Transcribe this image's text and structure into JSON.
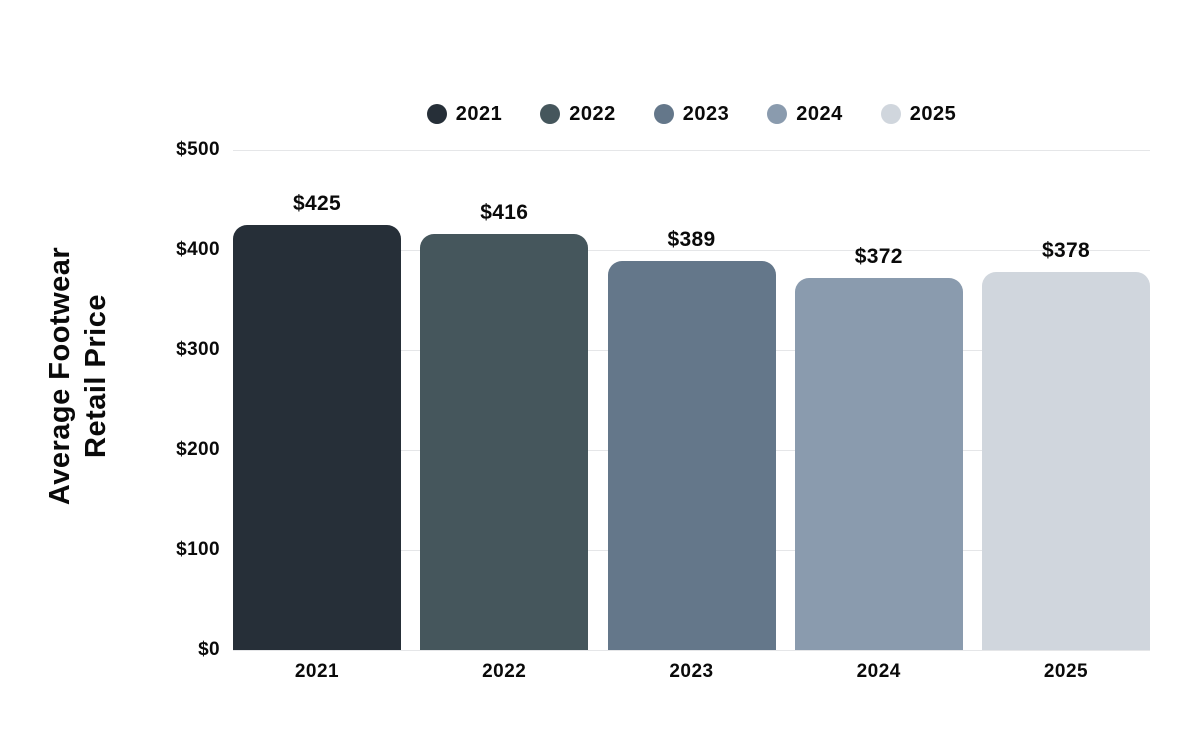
{
  "chart_data": {
    "type": "bar",
    "title": "",
    "ylabel_lines": [
      "Average Footwear",
      "Retail Price"
    ],
    "xlabel": "",
    "categories": [
      "2021",
      "2022",
      "2023",
      "2024",
      "2025"
    ],
    "values": [
      425,
      416,
      389,
      372,
      378
    ],
    "value_labels": [
      "$425",
      "$416",
      "$389",
      "$372",
      "$378"
    ],
    "bar_colors": [
      "#262F38",
      "#45565C",
      "#64778A",
      "#8A9BAE",
      "#D0D6DD"
    ],
    "legend": {
      "position": "top",
      "items": [
        {
          "label": "2021",
          "color": "#262F38"
        },
        {
          "label": "2022",
          "color": "#45565C"
        },
        {
          "label": "2023",
          "color": "#64778A"
        },
        {
          "label": "2024",
          "color": "#8A9BAE"
        },
        {
          "label": "2025",
          "color": "#D0D6DD"
        }
      ]
    },
    "y_axis": {
      "ticks": [
        {
          "value": 0,
          "label": "$0"
        },
        {
          "value": 100,
          "label": "$100"
        },
        {
          "value": 200,
          "label": "$200"
        },
        {
          "value": 300,
          "label": "$300"
        },
        {
          "value": 400,
          "label": "$400"
        },
        {
          "value": 500,
          "label": "$500"
        }
      ],
      "ylim": [
        0,
        500
      ]
    },
    "grid": true,
    "colors": {
      "background": "#ffffff",
      "gridline": "#e5e6e8",
      "text": "#0a0a0a"
    }
  }
}
